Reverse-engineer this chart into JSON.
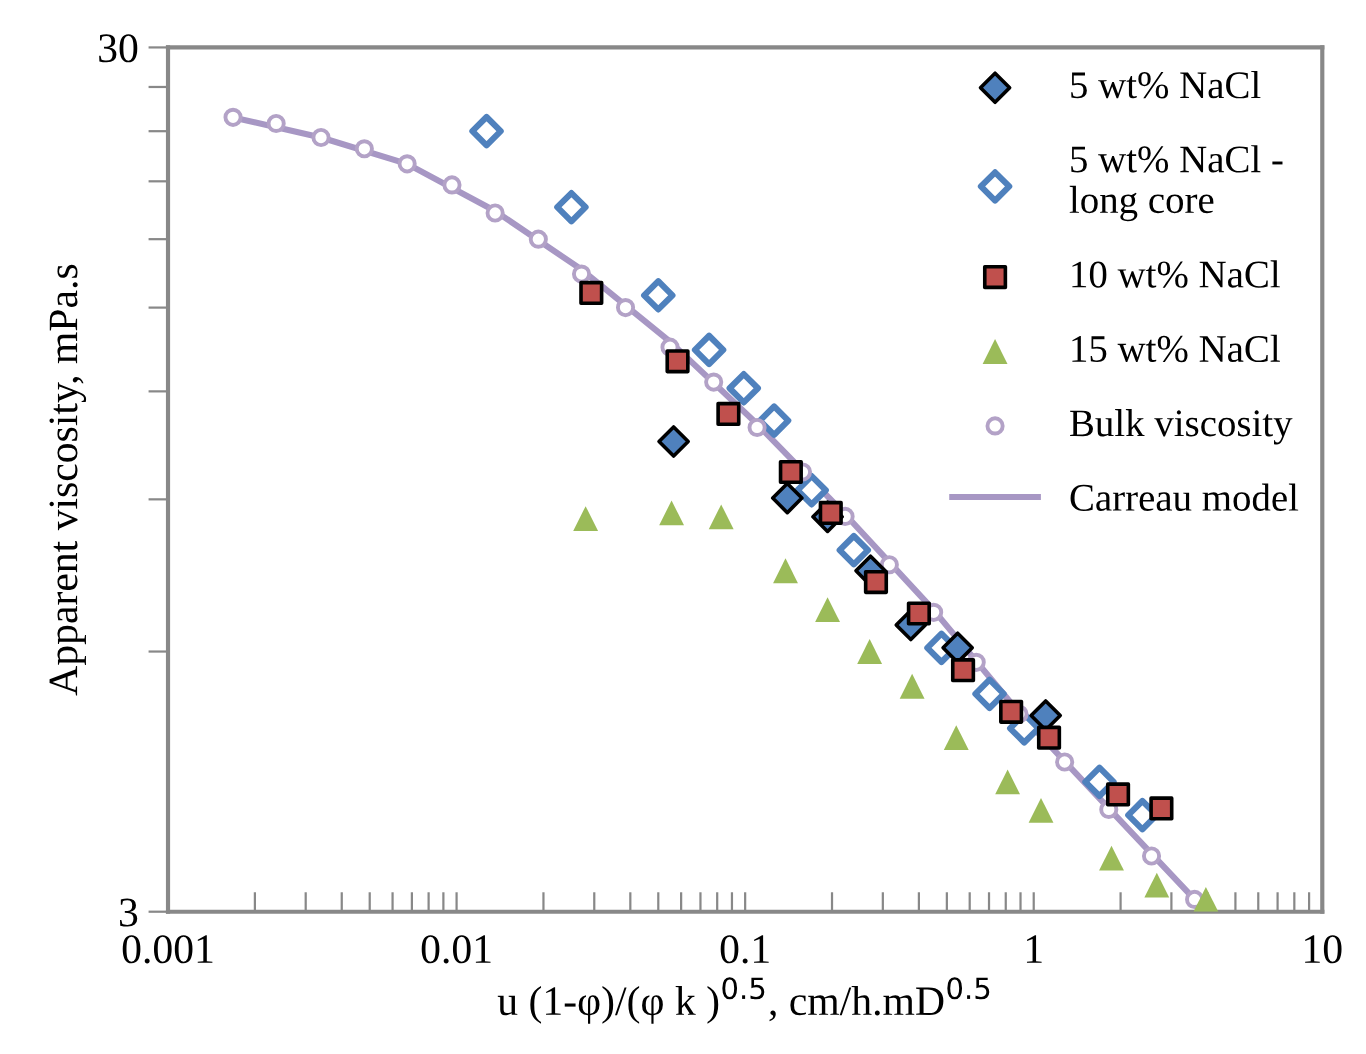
{
  "chart_data": {
    "type": "scatter",
    "xlabel": "u (1-φ)/(φ k )$^{0.5}$, cm/h.mD$^{0.5}$",
    "ylabel": "Apparent viscosity, mPa.s",
    "log": "xy",
    "xlim": [
      0.001,
      10
    ],
    "xticks": [
      {
        "value": 0.001,
        "label": "0.001"
      },
      {
        "value": 0.002,
        "label": null
      },
      {
        "value": 0.003,
        "label": null
      },
      {
        "value": 0.004,
        "label": null
      },
      {
        "value": 0.005,
        "label": null
      },
      {
        "value": 0.006,
        "label": null
      },
      {
        "value": 0.007,
        "label": null
      },
      {
        "value": 0.008,
        "label": null
      },
      {
        "value": 0.009,
        "label": null
      },
      {
        "value": 0.01,
        "label": "0.01"
      },
      {
        "value": 0.02,
        "label": null
      },
      {
        "value": 0.03,
        "label": null
      },
      {
        "value": 0.04,
        "label": null
      },
      {
        "value": 0.05,
        "label": null
      },
      {
        "value": 0.06,
        "label": null
      },
      {
        "value": 0.07,
        "label": null
      },
      {
        "value": 0.08,
        "label": null
      },
      {
        "value": 0.09,
        "label": null
      },
      {
        "value": 0.1,
        "label": "0.1"
      },
      {
        "value": 0.2,
        "label": null
      },
      {
        "value": 0.3,
        "label": null
      },
      {
        "value": 0.4,
        "label": null
      },
      {
        "value": 0.5,
        "label": null
      },
      {
        "value": 0.6,
        "label": null
      },
      {
        "value": 0.7,
        "label": null
      },
      {
        "value": 0.8,
        "label": null
      },
      {
        "value": 0.9,
        "label": null
      },
      1,
      {
        "value": 2,
        "label": null
      },
      {
        "value": 3,
        "label": null
      },
      {
        "value": 4,
        "label": null
      },
      {
        "value": 5,
        "label": null
      },
      {
        "value": 6,
        "label": null
      },
      {
        "value": 7,
        "label": null
      },
      {
        "value": 8,
        "label": null
      },
      {
        "value": 9,
        "label": null
      },
      10
    ],
    "ylim": [
      3,
      30
    ],
    "yticks": [
      3,
      {
        "value": 6,
        "label": null
      },
      {
        "value": 9,
        "label": null
      },
      {
        "value": 12,
        "label": null
      },
      {
        "value": 15,
        "label": null
      },
      {
        "value": 18,
        "label": null
      },
      {
        "value": 21,
        "label": null
      },
      {
        "value": 24,
        "label": null
      },
      {
        "value": 27,
        "label": null
      },
      30
    ],
    "grid": false,
    "legend": "top right",
    "series": [
      {
        "name": "5 wt% NaCl",
        "marker": "diamond",
        "color": "#4f81bd",
        "x": [
          0.0565,
          0.14,
          0.193,
          0.272,
          0.375,
          0.545,
          1.1
        ],
        "values": [
          10.5,
          9.03,
          8.59,
          7.44,
          6.44,
          6.06,
          5.06
        ]
      },
      {
        "name": "5 wt% NaCl -\nlong core",
        "marker": "diamond",
        "color": "#4f81bd",
        "x": [
          0.0127,
          0.025,
          0.05,
          0.075,
          0.0989,
          0.126,
          0.17,
          0.238,
          0.479,
          0.703,
          0.927,
          1.69,
          2.38
        ],
        "values": [
          24.0,
          19.6,
          15.5,
          13.4,
          12.1,
          11.1,
          9.22,
          7.86,
          6.06,
          5.36,
          4.89,
          4.24,
          3.88
        ]
      },
      {
        "name": "10 wt% NaCl",
        "marker": "square",
        "color": "#c0504d",
        "x": [
          0.0293,
          0.0583,
          0.0875,
          0.144,
          0.198,
          0.284,
          0.4,
          0.569,
          0.835,
          1.13,
          1.96,
          2.77
        ],
        "values": [
          15.6,
          13.0,
          11.3,
          9.68,
          8.68,
          7.22,
          6.64,
          5.71,
          5.11,
          4.77,
          4.1,
          3.95
        ]
      },
      {
        "name": "15 wt% NaCl",
        "marker": "triangle",
        "color": "#9bbb59",
        "x": [
          0.028,
          0.0556,
          0.0826,
          0.138,
          0.193,
          0.27,
          0.379,
          0.539,
          0.812,
          1.06,
          1.86,
          2.67,
          3.95
        ],
        "values": [
          8.55,
          8.68,
          8.59,
          7.44,
          6.71,
          6.0,
          5.47,
          4.77,
          4.24,
          3.93,
          3.46,
          3.22,
          3.1
        ]
      },
      {
        "name": "Bulk viscosity",
        "marker": "circle",
        "color": "#b3a2c7",
        "x": [
          0.00168,
          0.00237,
          0.00339,
          0.00479,
          0.00674,
          0.00964,
          0.0136,
          0.0192,
          0.0271,
          0.0385,
          0.0549,
          0.0778,
          0.11,
          0.158,
          0.222,
          0.316,
          0.45,
          0.632,
          0.889,
          1.28,
          1.82,
          2.56,
          3.61
        ],
        "values": [
          24.9,
          24.5,
          23.6,
          22.9,
          22.0,
          20.8,
          19.3,
          18.0,
          16.4,
          15.0,
          13.5,
          12.3,
          10.9,
          9.68,
          8.6,
          7.56,
          6.66,
          5.83,
          5.08,
          4.47,
          3.94,
          3.48,
          3.1
        ]
      },
      {
        "name": "Carreau model",
        "type": "line",
        "marker": "none",
        "line_style": "solid",
        "color": "#a797c4",
        "x": [
          0.00168,
          0.00339,
          0.00674,
          0.0136,
          0.0271,
          0.0549,
          0.11,
          0.222,
          0.45,
          0.889,
          1.82,
          3.61,
          4.0
        ],
        "values": [
          24.9,
          23.6,
          22.0,
          19.4,
          16.6,
          13.7,
          11.0,
          8.65,
          6.7,
          5.1,
          3.95,
          3.1,
          3.0
        ]
      }
    ]
  }
}
